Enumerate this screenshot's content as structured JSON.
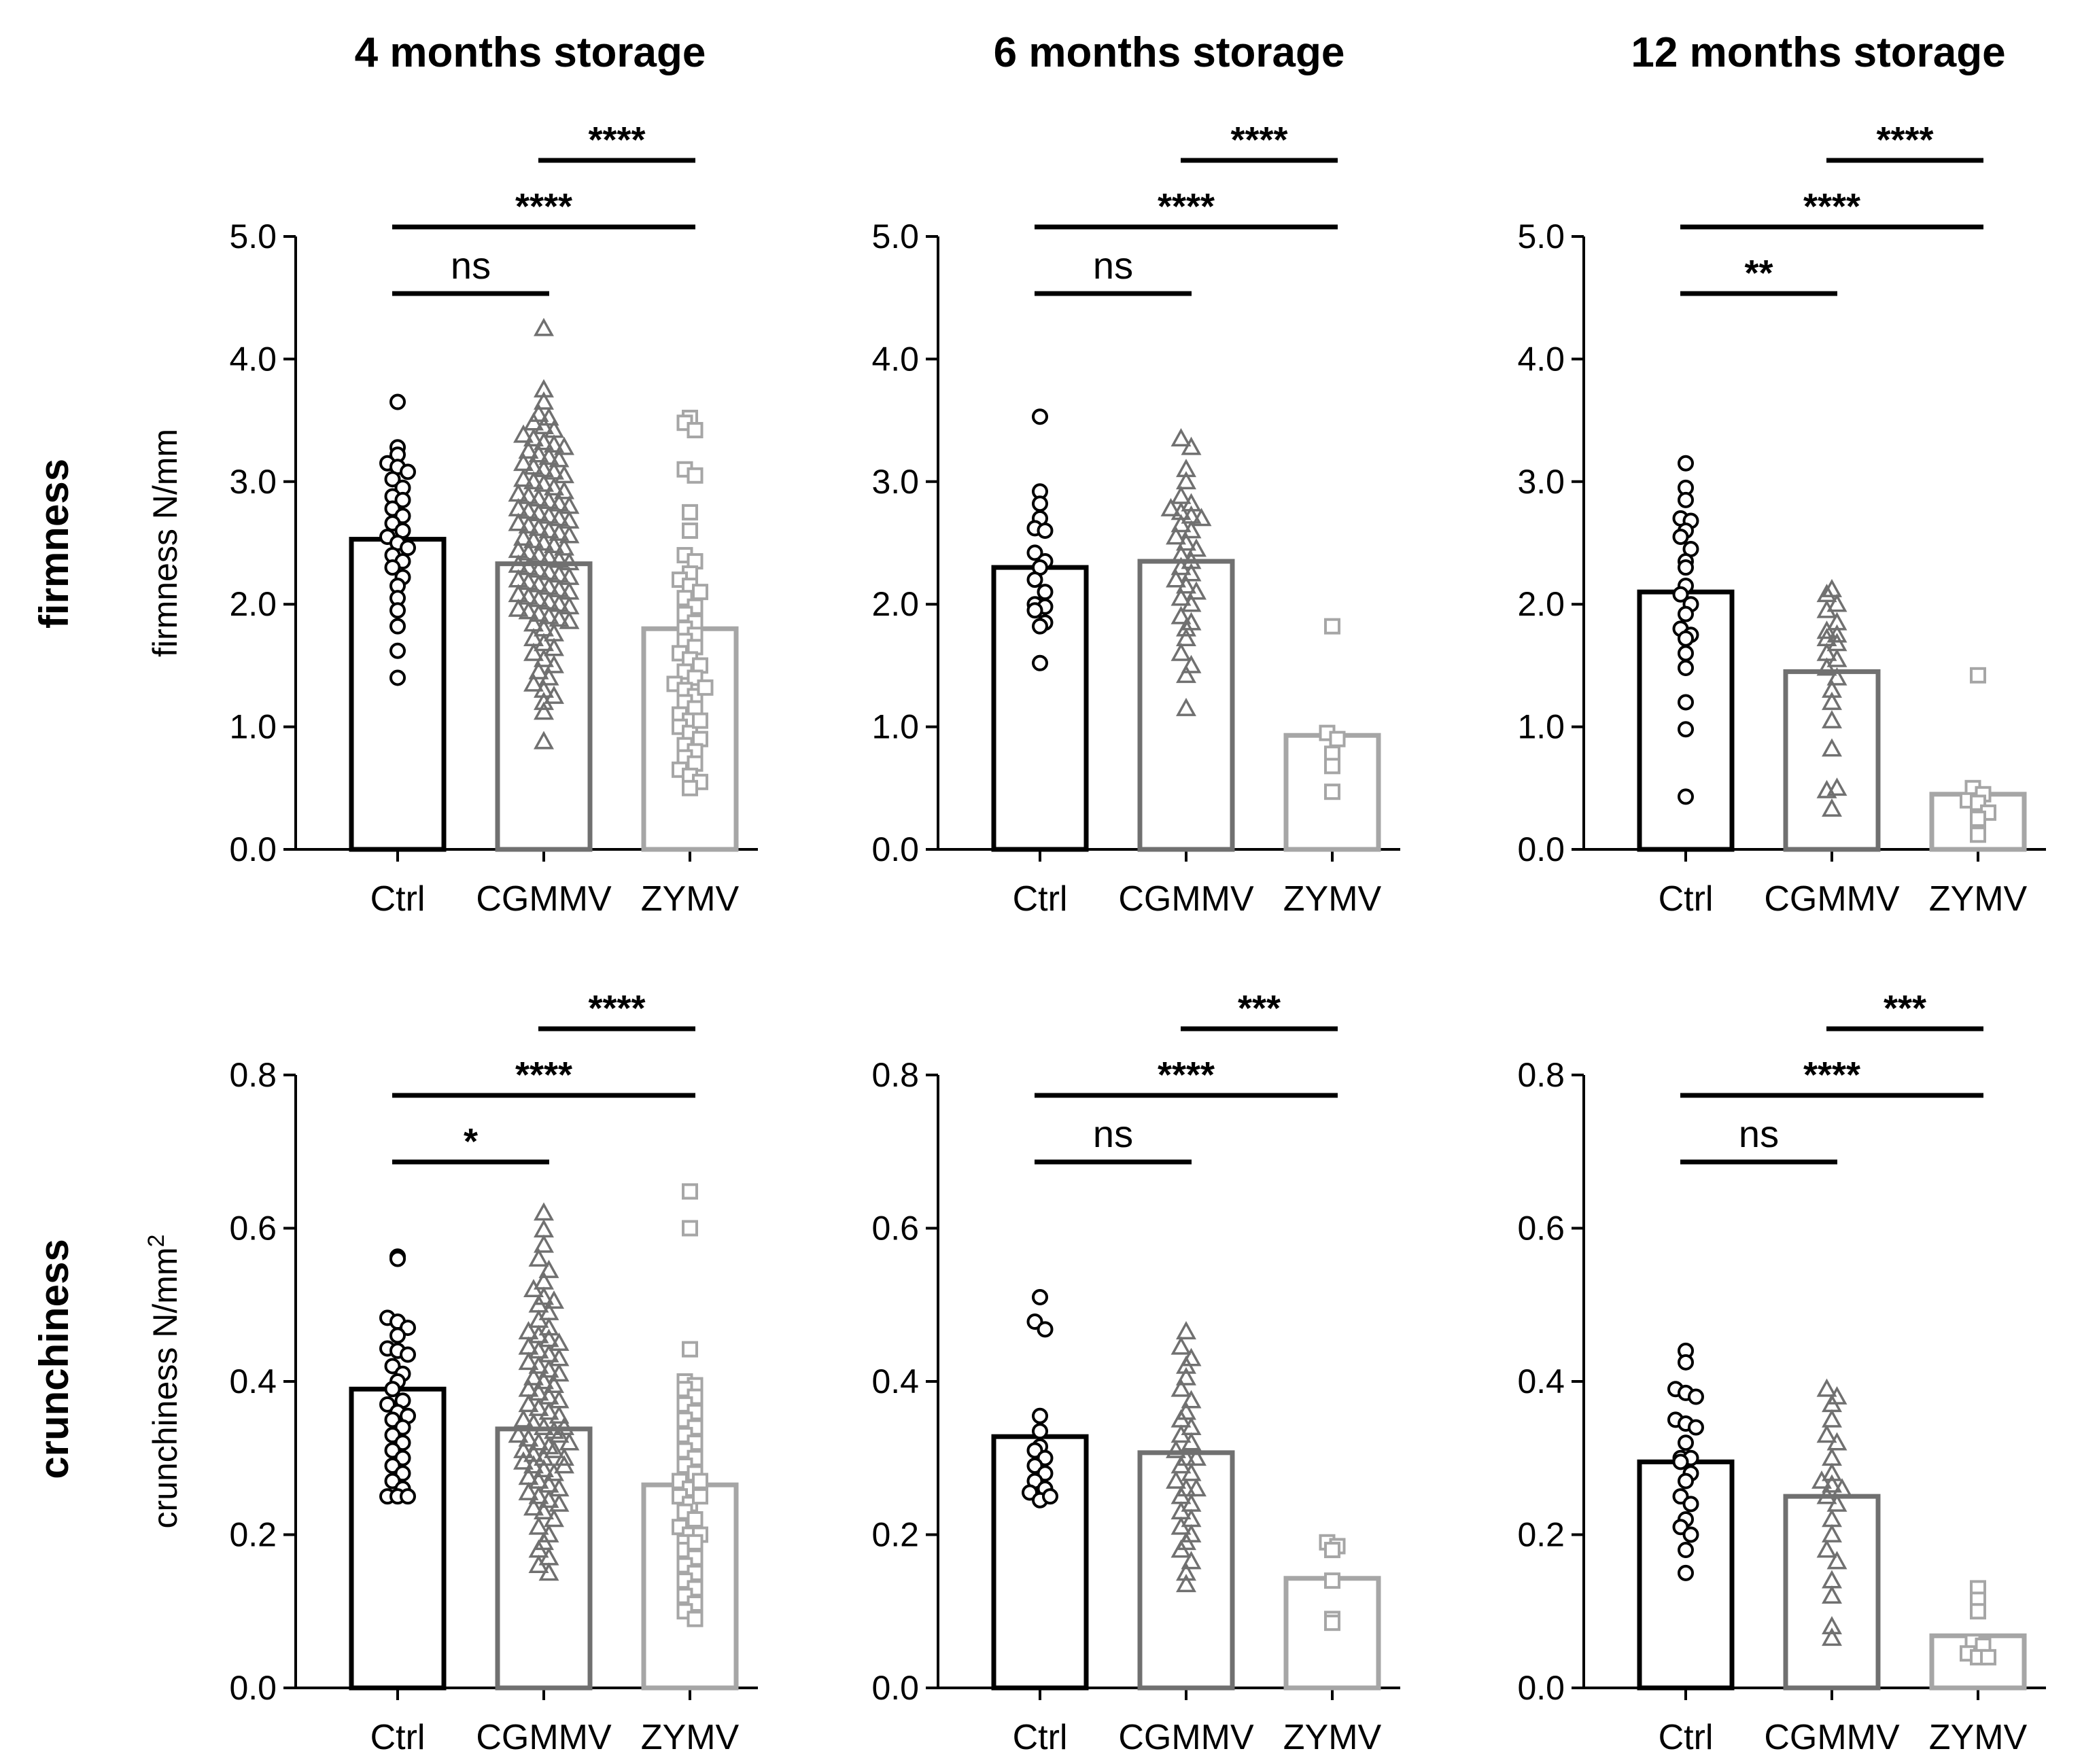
{
  "figure": {
    "row_titles": [
      "firmness",
      "crunchiness"
    ],
    "col_titles": [
      "4 months storage",
      "6 months storage",
      "12 months storage"
    ]
  },
  "chart_data": [
    {
      "type": "bar",
      "row": 0,
      "col": 0,
      "title": "4 months storage",
      "ylabel": "firmness N/mm",
      "ylim": [
        0,
        5
      ],
      "yticks": [
        0,
        1,
        2,
        3,
        4,
        5
      ],
      "ytick_labels": [
        "0.0",
        "1.0",
        "2.0",
        "3.0",
        "4.0",
        "5.0"
      ],
      "categories": [
        "Ctrl",
        "CGMMV",
        "ZYMV"
      ],
      "values": [
        2.53,
        2.33,
        1.8
      ],
      "series_colors": [
        "#000000",
        "#707070",
        "#a6a6a6"
      ],
      "markers": [
        "circle",
        "triangle",
        "square"
      ],
      "points": [
        [
          3.65,
          3.28,
          3.22,
          3.15,
          3.12,
          3.08,
          3.02,
          2.95,
          2.88,
          2.85,
          2.78,
          2.72,
          2.66,
          2.6,
          2.55,
          2.5,
          2.46,
          2.4,
          2.35,
          2.3,
          2.22,
          2.15,
          2.05,
          1.95,
          1.82,
          1.62,
          1.4
        ],
        [
          4.25,
          3.75,
          3.65,
          3.55,
          3.52,
          3.48,
          3.45,
          3.42,
          3.38,
          3.35,
          3.32,
          3.3,
          3.28,
          3.25,
          3.22,
          3.2,
          3.18,
          3.15,
          3.12,
          3.1,
          3.08,
          3.05,
          3.02,
          3.0,
          2.98,
          2.95,
          2.92,
          2.9,
          2.88,
          2.86,
          2.84,
          2.82,
          2.8,
          2.78,
          2.76,
          2.74,
          2.72,
          2.7,
          2.68,
          2.66,
          2.64,
          2.62,
          2.6,
          2.58,
          2.56,
          2.54,
          2.52,
          2.5,
          2.48,
          2.46,
          2.44,
          2.42,
          2.4,
          2.38,
          2.36,
          2.34,
          2.32,
          2.3,
          2.28,
          2.26,
          2.24,
          2.22,
          2.2,
          2.18,
          2.16,
          2.14,
          2.12,
          2.1,
          2.08,
          2.06,
          2.04,
          2.02,
          2.0,
          1.98,
          1.96,
          1.94,
          1.92,
          1.9,
          1.88,
          1.86,
          1.84,
          1.8,
          1.76,
          1.72,
          1.68,
          1.64,
          1.6,
          1.55,
          1.5,
          1.45,
          1.4,
          1.35,
          1.3,
          1.25,
          1.2,
          1.12,
          0.88
        ],
        [
          3.52,
          3.48,
          3.42,
          3.1,
          3.05,
          2.75,
          2.6,
          2.4,
          2.35,
          2.25,
          2.2,
          2.15,
          2.1,
          2.05,
          1.98,
          1.92,
          1.85,
          1.8,
          1.75,
          1.7,
          1.65,
          1.6,
          1.55,
          1.5,
          1.45,
          1.4,
          1.35,
          1.3,
          1.25,
          1.2,
          1.15,
          1.1,
          1.05,
          1.0,
          0.95,
          0.9,
          0.85,
          0.8,
          0.75,
          0.7,
          0.65,
          0.6,
          0.55,
          0.5,
          1.32,
          1.05
        ]
      ],
      "significance": [
        {
          "from": 0,
          "to": 1,
          "label": "ns",
          "level": 1
        },
        {
          "from": 0,
          "to": 2,
          "label": "****",
          "level": 2
        },
        {
          "from": 1,
          "to": 2,
          "label": "****",
          "level": 3
        }
      ]
    },
    {
      "type": "bar",
      "row": 0,
      "col": 1,
      "title": "6 months storage",
      "ylabel": "",
      "ylim": [
        0,
        5
      ],
      "yticks": [
        0,
        1,
        2,
        3,
        4,
        5
      ],
      "ytick_labels": [
        "0.0",
        "1.0",
        "2.0",
        "3.0",
        "4.0",
        "5.0"
      ],
      "categories": [
        "Ctrl",
        "CGMMV",
        "ZYMV"
      ],
      "values": [
        2.3,
        2.35,
        0.93
      ],
      "series_colors": [
        "#000000",
        "#707070",
        "#a6a6a6"
      ],
      "markers": [
        "circle",
        "triangle",
        "square"
      ],
      "points": [
        [
          3.53,
          2.92,
          2.82,
          2.7,
          2.62,
          2.6,
          2.42,
          2.35,
          2.3,
          2.2,
          2.1,
          2.0,
          1.98,
          1.95,
          1.85,
          1.82,
          1.52
        ],
        [
          3.35,
          3.28,
          3.1,
          3.0,
          2.88,
          2.82,
          2.78,
          2.75,
          2.72,
          2.7,
          2.65,
          2.6,
          2.55,
          2.5,
          2.45,
          2.4,
          2.35,
          2.3,
          2.25,
          2.2,
          2.15,
          2.1,
          2.05,
          2.0,
          1.9,
          1.85,
          1.8,
          1.72,
          1.6,
          1.5,
          1.15,
          1.42
        ],
        [
          1.82,
          0.95,
          0.9,
          0.78,
          0.68,
          0.47
        ]
      ],
      "significance": [
        {
          "from": 0,
          "to": 1,
          "label": "ns",
          "level": 1
        },
        {
          "from": 0,
          "to": 2,
          "label": "****",
          "level": 2
        },
        {
          "from": 1,
          "to": 2,
          "label": "****",
          "level": 3
        }
      ]
    },
    {
      "type": "bar",
      "row": 0,
      "col": 2,
      "title": "12 months storage",
      "ylabel": "",
      "ylim": [
        0,
        5
      ],
      "yticks": [
        0,
        1,
        2,
        3,
        4,
        5
      ],
      "ytick_labels": [
        "0.0",
        "1.0",
        "2.0",
        "3.0",
        "4.0",
        "5.0"
      ],
      "categories": [
        "Ctrl",
        "CGMMV",
        "ZYMV"
      ],
      "values": [
        2.1,
        1.45,
        0.45
      ],
      "series_colors": [
        "#000000",
        "#707070",
        "#a6a6a6"
      ],
      "markers": [
        "circle",
        "triangle",
        "square"
      ],
      "points": [
        [
          3.15,
          2.95,
          2.85,
          2.7,
          2.68,
          2.6,
          2.55,
          2.45,
          2.35,
          2.3,
          2.15,
          2.08,
          2.0,
          1.92,
          1.8,
          1.75,
          1.72,
          1.6,
          1.48,
          1.2,
          0.98,
          0.43
        ],
        [
          2.12,
          2.08,
          2.0,
          1.95,
          1.85,
          1.78,
          1.75,
          1.72,
          1.68,
          1.6,
          1.55,
          1.48,
          1.4,
          1.3,
          1.2,
          1.05,
          0.82,
          0.48,
          0.33,
          0.5
        ],
        [
          1.42,
          0.5,
          0.45,
          0.4,
          0.38,
          0.3,
          0.25,
          0.12
        ]
      ],
      "significance": [
        {
          "from": 0,
          "to": 1,
          "label": "**",
          "level": 1
        },
        {
          "from": 0,
          "to": 2,
          "label": "****",
          "level": 2
        },
        {
          "from": 1,
          "to": 2,
          "label": "****",
          "level": 3
        }
      ]
    },
    {
      "type": "bar",
      "row": 1,
      "col": 0,
      "title": "",
      "ylabel": "crunchiness N/mm2",
      "ylim": [
        0,
        0.8
      ],
      "yticks": [
        0,
        0.2,
        0.4,
        0.6,
        0.8
      ],
      "ytick_labels": [
        "0.0",
        "0.2",
        "0.4",
        "0.6",
        "0.8"
      ],
      "categories": [
        "Ctrl",
        "CGMMV",
        "ZYMV"
      ],
      "values": [
        0.39,
        0.338,
        0.265
      ],
      "series_colors": [
        "#000000",
        "#707070",
        "#a6a6a6"
      ],
      "markers": [
        "circle",
        "triangle",
        "square"
      ],
      "points": [
        [
          0.563,
          0.56,
          0.483,
          0.478,
          0.47,
          0.46,
          0.443,
          0.44,
          0.435,
          0.42,
          0.41,
          0.4,
          0.39,
          0.375,
          0.37,
          0.36,
          0.355,
          0.35,
          0.34,
          0.33,
          0.32,
          0.31,
          0.3,
          0.29,
          0.28,
          0.27,
          0.26,
          0.25,
          0.25,
          0.25
        ],
        [
          0.62,
          0.598,
          0.578,
          0.56,
          0.545,
          0.53,
          0.52,
          0.51,
          0.505,
          0.5,
          0.49,
          0.48,
          0.47,
          0.465,
          0.46,
          0.455,
          0.45,
          0.445,
          0.44,
          0.435,
          0.43,
          0.425,
          0.42,
          0.415,
          0.41,
          0.405,
          0.4,
          0.395,
          0.39,
          0.385,
          0.38,
          0.375,
          0.37,
          0.365,
          0.36,
          0.355,
          0.35,
          0.345,
          0.34,
          0.335,
          0.33,
          0.325,
          0.32,
          0.315,
          0.31,
          0.305,
          0.3,
          0.295,
          0.29,
          0.285,
          0.28,
          0.275,
          0.27,
          0.265,
          0.26,
          0.255,
          0.25,
          0.245,
          0.24,
          0.235,
          0.23,
          0.22,
          0.21,
          0.2,
          0.19,
          0.18,
          0.17,
          0.16,
          0.15,
          0.34,
          0.33,
          0.32,
          0.31,
          0.3,
          0.29
        ],
        [
          0.648,
          0.6,
          0.442,
          0.4,
          0.395,
          0.39,
          0.38,
          0.37,
          0.36,
          0.35,
          0.34,
          0.33,
          0.32,
          0.31,
          0.3,
          0.29,
          0.28,
          0.27,
          0.26,
          0.25,
          0.24,
          0.23,
          0.22,
          0.21,
          0.2,
          0.19,
          0.18,
          0.17,
          0.16,
          0.15,
          0.14,
          0.13,
          0.12,
          0.11,
          0.1,
          0.09,
          0.2,
          0.19,
          0.27,
          0.25
        ]
      ],
      "significance": [
        {
          "from": 0,
          "to": 1,
          "label": "*",
          "level": 1
        },
        {
          "from": 0,
          "to": 2,
          "label": "****",
          "level": 2
        },
        {
          "from": 1,
          "to": 2,
          "label": "****",
          "level": 3
        }
      ]
    },
    {
      "type": "bar",
      "row": 1,
      "col": 1,
      "title": "",
      "ylabel": "",
      "ylim": [
        0,
        0.8
      ],
      "yticks": [
        0,
        0.2,
        0.4,
        0.6,
        0.8
      ],
      "ytick_labels": [
        "0.0",
        "0.2",
        "0.4",
        "0.6",
        "0.8"
      ],
      "categories": [
        "Ctrl",
        "CGMMV",
        "ZYMV"
      ],
      "values": [
        0.328,
        0.307,
        0.143
      ],
      "series_colors": [
        "#000000",
        "#707070",
        "#a6a6a6"
      ],
      "markers": [
        "circle",
        "triangle",
        "square"
      ],
      "points": [
        [
          0.51,
          0.478,
          0.468,
          0.355,
          0.335,
          0.315,
          0.31,
          0.3,
          0.29,
          0.28,
          0.27,
          0.26,
          0.255,
          0.245,
          0.25
        ],
        [
          0.465,
          0.445,
          0.43,
          0.42,
          0.405,
          0.39,
          0.375,
          0.36,
          0.35,
          0.34,
          0.33,
          0.32,
          0.31,
          0.3,
          0.29,
          0.28,
          0.27,
          0.26,
          0.25,
          0.24,
          0.23,
          0.22,
          0.21,
          0.2,
          0.19,
          0.18,
          0.165,
          0.15,
          0.135,
          0.3,
          0.26
        ],
        [
          0.19,
          0.185,
          0.18,
          0.14,
          0.09,
          0.085
        ]
      ],
      "significance": [
        {
          "from": 0,
          "to": 1,
          "label": "ns",
          "level": 1
        },
        {
          "from": 0,
          "to": 2,
          "label": "****",
          "level": 2
        },
        {
          "from": 1,
          "to": 2,
          "label": "***",
          "level": 3
        }
      ]
    },
    {
      "type": "bar",
      "row": 1,
      "col": 2,
      "title": "",
      "ylabel": "",
      "ylim": [
        0,
        0.8
      ],
      "yticks": [
        0,
        0.2,
        0.4,
        0.6,
        0.8
      ],
      "ytick_labels": [
        "0.0",
        "0.2",
        "0.4",
        "0.6",
        "0.8"
      ],
      "categories": [
        "Ctrl",
        "CGMMV",
        "ZYMV"
      ],
      "values": [
        0.295,
        0.25,
        0.068
      ],
      "series_colors": [
        "#000000",
        "#707070",
        "#a6a6a6"
      ],
      "markers": [
        "circle",
        "triangle",
        "square"
      ],
      "points": [
        [
          0.44,
          0.425,
          0.39,
          0.385,
          0.38,
          0.35,
          0.345,
          0.34,
          0.32,
          0.3,
          0.3,
          0.295,
          0.28,
          0.27,
          0.25,
          0.24,
          0.22,
          0.21,
          0.2,
          0.18,
          0.15
        ],
        [
          0.39,
          0.38,
          0.37,
          0.35,
          0.33,
          0.32,
          0.3,
          0.28,
          0.27,
          0.265,
          0.26,
          0.25,
          0.24,
          0.22,
          0.2,
          0.18,
          0.165,
          0.14,
          0.12,
          0.08,
          0.065
        ],
        [
          0.13,
          0.115,
          0.1,
          0.06,
          0.055,
          0.045,
          0.04,
          0.04
        ]
      ],
      "significance": [
        {
          "from": 0,
          "to": 1,
          "label": "ns",
          "level": 1
        },
        {
          "from": 0,
          "to": 2,
          "label": "****",
          "level": 2
        },
        {
          "from": 1,
          "to": 2,
          "label": "***",
          "level": 3
        }
      ]
    }
  ]
}
